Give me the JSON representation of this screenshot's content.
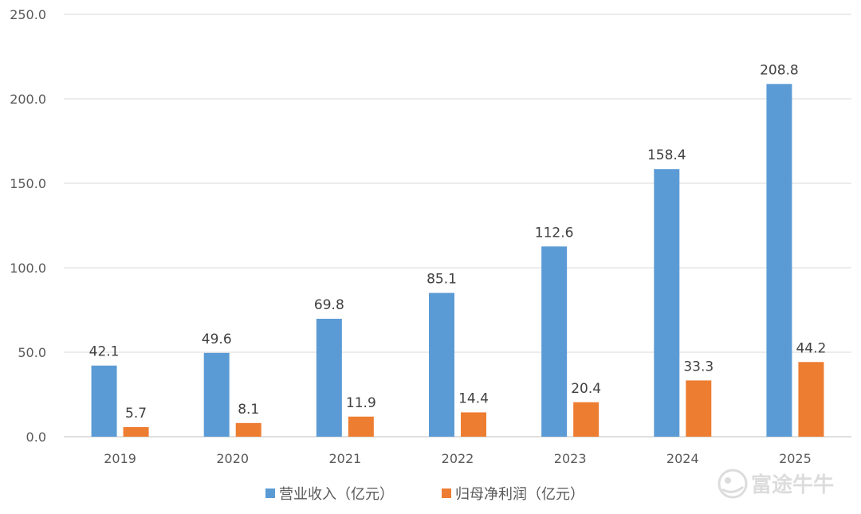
{
  "chart_data": {
    "type": "bar",
    "categories": [
      "2019",
      "2020",
      "2021",
      "2022",
      "2023",
      "2024",
      "2025"
    ],
    "series": [
      {
        "name": "营业收入（亿元）",
        "color": "#5b9bd5",
        "values": [
          42.1,
          49.6,
          69.8,
          85.1,
          112.6,
          158.4,
          208.8
        ]
      },
      {
        "name": "归母净利润（亿元）",
        "color": "#ed7d31",
        "values": [
          5.7,
          8.1,
          11.9,
          14.4,
          20.4,
          33.3,
          44.2
        ]
      }
    ],
    "ylim": [
      0,
      250
    ],
    "yticks": [
      "0.0",
      "50.0",
      "100.0",
      "150.0",
      "200.0",
      "250.0"
    ],
    "grid": true,
    "legend_position": "bottom"
  },
  "watermark": {
    "text": "富途牛牛",
    "icon": "futu-bull-logo-icon"
  }
}
